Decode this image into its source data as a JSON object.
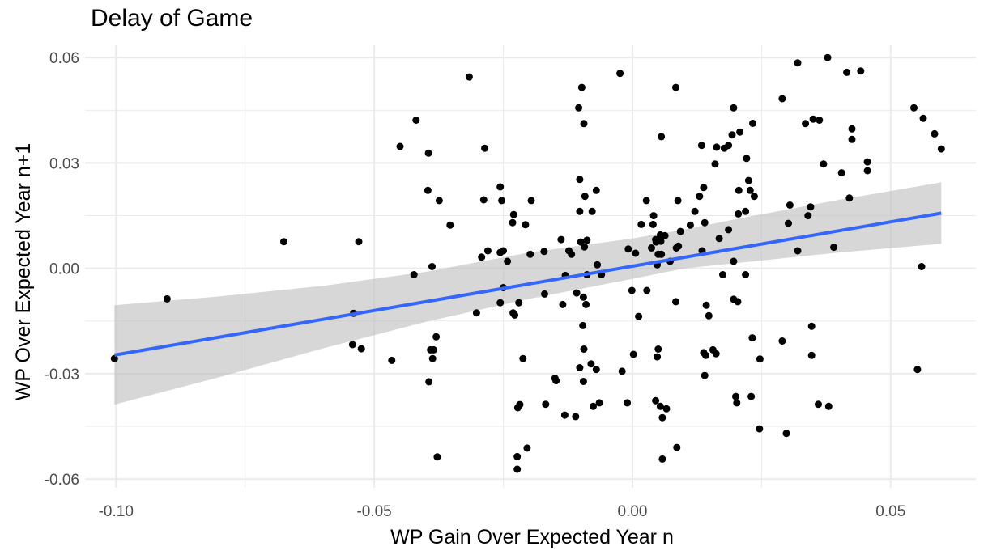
{
  "chart_data": {
    "type": "scatter",
    "title": "Delay of Game",
    "xlabel": "WP Gain Over Expected Year n",
    "ylabel": "WP Over Expected Year n+1",
    "xlim": [
      -0.106,
      0.0665
    ],
    "ylim": [
      -0.0625,
      0.0635
    ],
    "x_ticks": [
      -0.1,
      -0.05,
      0.0,
      0.05
    ],
    "x_tick_labels": [
      "-0.10",
      "-0.05",
      "0.00",
      "0.05"
    ],
    "y_ticks": [
      -0.06,
      -0.03,
      0.0,
      0.03,
      0.06
    ],
    "y_tick_labels": [
      "-0.06",
      "-0.03",
      "0.00",
      "0.03",
      "0.06"
    ],
    "grid": true,
    "legend": "none",
    "colors": {
      "points": "#000000",
      "fit_line": "#3366ff",
      "confidence_band": "#bebebe",
      "grid": "#ebebeb"
    },
    "fit_line": {
      "x": [
        -0.1003,
        0.0598
      ],
      "y": [
        -0.0247,
        0.0157
      ]
    },
    "confidence_band": {
      "x": [
        -0.1003,
        -0.08,
        -0.06,
        -0.04,
        -0.02,
        0.0,
        0.01,
        0.02,
        0.04,
        0.0598
      ],
      "lower": [
        -0.0388,
        -0.031,
        -0.0228,
        -0.0152,
        -0.0087,
        -0.003,
        0.0,
        0.0015,
        0.0045,
        0.007
      ],
      "upper": [
        -0.0105,
        -0.008,
        -0.005,
        -0.001,
        0.0045,
        0.0085,
        0.011,
        0.014,
        0.0195,
        0.0245
      ]
    },
    "points": [
      {
        "x": -0.1003,
        "y": -0.0257
      },
      {
        "x": -0.0901,
        "y": -0.0087
      },
      {
        "x": -0.0675,
        "y": 0.0076
      },
      {
        "x": -0.053,
        "y": 0.0076
      },
      {
        "x": -0.054,
        "y": -0.0128
      },
      {
        "x": -0.0542,
        "y": -0.0217
      },
      {
        "x": -0.0525,
        "y": -0.0229
      },
      {
        "x": -0.0466,
        "y": -0.0262
      },
      {
        "x": -0.045,
        "y": 0.0347
      },
      {
        "x": -0.0419,
        "y": 0.0422
      },
      {
        "x": -0.0423,
        "y": -0.0018
      },
      {
        "x": -0.0395,
        "y": 0.0328
      },
      {
        "x": -0.0396,
        "y": 0.0222
      },
      {
        "x": -0.0374,
        "y": 0.0193
      },
      {
        "x": -0.0388,
        "y": 0.0005
      },
      {
        "x": -0.038,
        "y": -0.0195
      },
      {
        "x": -0.0385,
        "y": -0.0232
      },
      {
        "x": -0.0391,
        "y": -0.0232
      },
      {
        "x": -0.0387,
        "y": -0.0257
      },
      {
        "x": -0.0394,
        "y": -0.0323
      },
      {
        "x": -0.0378,
        "y": -0.0537
      },
      {
        "x": -0.0353,
        "y": 0.0123
      },
      {
        "x": -0.0316,
        "y": 0.0545
      },
      {
        "x": -0.0302,
        "y": -0.0127
      },
      {
        "x": -0.0286,
        "y": 0.0342
      },
      {
        "x": -0.0288,
        "y": 0.0195
      },
      {
        "x": -0.0292,
        "y": 0.0032
      },
      {
        "x": -0.028,
        "y": 0.005
      },
      {
        "x": -0.0256,
        "y": 0.0232
      },
      {
        "x": -0.0253,
        "y": 0.0193
      },
      {
        "x": -0.0256,
        "y": 0.0045
      },
      {
        "x": -0.025,
        "y": 0.005
      },
      {
        "x": -0.0242,
        "y": 0.002
      },
      {
        "x": -0.025,
        "y": -0.0055
      },
      {
        "x": -0.0256,
        "y": -0.0098
      },
      {
        "x": -0.023,
        "y": 0.0153
      },
      {
        "x": -0.0232,
        "y": 0.013
      },
      {
        "x": -0.0231,
        "y": -0.0127
      },
      {
        "x": -0.022,
        "y": -0.0098
      },
      {
        "x": -0.0228,
        "y": -0.0133
      },
      {
        "x": -0.0218,
        "y": -0.0388
      },
      {
        "x": -0.0222,
        "y": -0.0397
      },
      {
        "x": -0.0223,
        "y": -0.0536
      },
      {
        "x": -0.0223,
        "y": -0.0572
      },
      {
        "x": -0.0204,
        "y": -0.0512
      },
      {
        "x": -0.0212,
        "y": -0.0257
      },
      {
        "x": -0.0196,
        "y": 0.0193
      },
      {
        "x": -0.0207,
        "y": 0.0124
      },
      {
        "x": -0.0198,
        "y": 0.004
      },
      {
        "x": -0.017,
        "y": -0.0073
      },
      {
        "x": -0.0171,
        "y": 0.0048
      },
      {
        "x": -0.0168,
        "y": -0.0387
      },
      {
        "x": -0.015,
        "y": -0.0313
      },
      {
        "x": -0.0148,
        "y": -0.032
      },
      {
        "x": -0.0138,
        "y": 0.0082
      },
      {
        "x": -0.0135,
        "y": -0.0103
      },
      {
        "x": -0.013,
        "y": -0.002
      },
      {
        "x": -0.0131,
        "y": -0.0418
      },
      {
        "x": -0.0123,
        "y": 0.005
      },
      {
        "x": -0.0118,
        "y": 0.004
      },
      {
        "x": -0.011,
        "y": -0.0422
      },
      {
        "x": -0.0104,
        "y": 0.0457
      },
      {
        "x": -0.0102,
        "y": 0.0253
      },
      {
        "x": -0.0102,
        "y": 0.0162
      },
      {
        "x": -0.01,
        "y": 0.0075
      },
      {
        "x": -0.0108,
        "y": -0.007
      },
      {
        "x": -0.0102,
        "y": -0.0283
      },
      {
        "x": -0.0098,
        "y": 0.0515
      },
      {
        "x": -0.0094,
        "y": 0.0412
      },
      {
        "x": -0.0092,
        "y": 0.0205
      },
      {
        "x": -0.0093,
        "y": 0.0061
      },
      {
        "x": -0.0088,
        "y": 0.008
      },
      {
        "x": -0.0095,
        "y": -0.0082
      },
      {
        "x": -0.009,
        "y": -0.0103
      },
      {
        "x": -0.0096,
        "y": -0.0163
      },
      {
        "x": -0.0094,
        "y": -0.023
      },
      {
        "x": -0.0095,
        "y": -0.0322
      },
      {
        "x": -0.0088,
        "y": -0.0018
      },
      {
        "x": -0.0078,
        "y": 0.0162
      },
      {
        "x": -0.008,
        "y": -0.0272
      },
      {
        "x": -0.0076,
        "y": -0.0393
      },
      {
        "x": -0.007,
        "y": 0.0222
      },
      {
        "x": -0.0068,
        "y": 0.001
      },
      {
        "x": -0.007,
        "y": -0.0288
      },
      {
        "x": -0.0064,
        "y": -0.0383
      },
      {
        "x": -0.006,
        "y": -0.0018
      },
      {
        "x": -0.0024,
        "y": 0.0555
      },
      {
        "x": -0.002,
        "y": -0.0293
      },
      {
        "x": -0.001,
        "y": -0.0383
      },
      {
        "x": -0.0008,
        "y": 0.0055
      },
      {
        "x": 0.0006,
        "y": 0.0043
      },
      {
        "x": -0.0001,
        "y": -0.0063
      },
      {
        "x": 0.0002,
        "y": -0.0245
      },
      {
        "x": 0.0017,
        "y": 0.0125
      },
      {
        "x": 0.0012,
        "y": -0.0137
      },
      {
        "x": 0.0027,
        "y": 0.0193
      },
      {
        "x": 0.0028,
        "y": -0.0063
      },
      {
        "x": 0.0037,
        "y": 0.0058
      },
      {
        "x": 0.004,
        "y": 0.0125
      },
      {
        "x": 0.0041,
        "y": 0.015
      },
      {
        "x": 0.0045,
        "y": 0.0082
      },
      {
        "x": 0.0046,
        "y": 0.0075
      },
      {
        "x": 0.0048,
        "y": 0.001
      },
      {
        "x": 0.005,
        "y": 0.004
      },
      {
        "x": 0.0054,
        "y": 0.0095
      },
      {
        "x": 0.005,
        "y": -0.023
      },
      {
        "x": 0.0048,
        "y": -0.0252
      },
      {
        "x": 0.0045,
        "y": -0.0377
      },
      {
        "x": 0.0054,
        "y": -0.0393
      },
      {
        "x": 0.0058,
        "y": -0.0425
      },
      {
        "x": 0.0056,
        "y": 0.0375
      },
      {
        "x": 0.0055,
        "y": 0.0077
      },
      {
        "x": 0.0056,
        "y": 0.004
      },
      {
        "x": 0.0063,
        "y": 0.0093
      },
      {
        "x": 0.0066,
        "y": -0.04
      },
      {
        "x": 0.0058,
        "y": -0.0543
      },
      {
        "x": 0.0073,
        "y": 0.002
      },
      {
        "x": 0.0084,
        "y": 0.0515
      },
      {
        "x": 0.0088,
        "y": 0.0193
      },
      {
        "x": 0.0085,
        "y": 0.0058
      },
      {
        "x": 0.0093,
        "y": 0.0105
      },
      {
        "x": 0.0089,
        "y": 0.0063
      },
      {
        "x": 0.0084,
        "y": -0.0095
      },
      {
        "x": 0.0086,
        "y": -0.051
      },
      {
        "x": 0.0112,
        "y": 0.0123
      },
      {
        "x": 0.0121,
        "y": 0.0162
      },
      {
        "x": 0.0134,
        "y": 0.035
      },
      {
        "x": 0.013,
        "y": 0.0205
      },
      {
        "x": 0.0138,
        "y": 0.023
      },
      {
        "x": 0.014,
        "y": 0.013
      },
      {
        "x": 0.0135,
        "y": 0.005
      },
      {
        "x": 0.0143,
        "y": -0.0105
      },
      {
        "x": 0.0138,
        "y": -0.024
      },
      {
        "x": 0.0142,
        "y": -0.0248
      },
      {
        "x": 0.014,
        "y": -0.0305
      },
      {
        "x": 0.0148,
        "y": -0.0135
      },
      {
        "x": 0.016,
        "y": 0.0297
      },
      {
        "x": 0.0163,
        "y": 0.0345
      },
      {
        "x": 0.0156,
        "y": -0.0232
      },
      {
        "x": 0.0162,
        "y": -0.0243
      },
      {
        "x": 0.0168,
        "y": 0.0085
      },
      {
        "x": 0.0178,
        "y": 0.0342
      },
      {
        "x": 0.0175,
        "y": -0.0018
      },
      {
        "x": 0.0186,
        "y": 0.035
      },
      {
        "x": 0.0193,
        "y": 0.038
      },
      {
        "x": 0.0196,
        "y": 0.0457
      },
      {
        "x": 0.0186,
        "y": 0.011
      },
      {
        "x": 0.0196,
        "y": 0.002
      },
      {
        "x": 0.0196,
        "y": -0.0088
      },
      {
        "x": 0.02,
        "y": -0.0365
      },
      {
        "x": 0.0205,
        "y": 0.0155
      },
      {
        "x": 0.0204,
        "y": -0.0095
      },
      {
        "x": 0.0202,
        "y": -0.0383
      },
      {
        "x": 0.0208,
        "y": 0.0388
      },
      {
        "x": 0.0206,
        "y": 0.0222
      },
      {
        "x": 0.0219,
        "y": 0.0162
      },
      {
        "x": 0.0221,
        "y": 0.0313
      },
      {
        "x": 0.0225,
        "y": 0.025
      },
      {
        "x": 0.0228,
        "y": 0.0222
      },
      {
        "x": 0.0219,
        "y": -0.0018
      },
      {
        "x": 0.023,
        "y": -0.0365
      },
      {
        "x": 0.0233,
        "y": 0.0413
      },
      {
        "x": 0.0236,
        "y": 0.0205
      },
      {
        "x": 0.0232,
        "y": -0.0198
      },
      {
        "x": 0.0247,
        "y": -0.0258
      },
      {
        "x": 0.0246,
        "y": -0.0457
      },
      {
        "x": 0.029,
        "y": 0.0483
      },
      {
        "x": 0.029,
        "y": -0.0207
      },
      {
        "x": 0.0298,
        "y": -0.047
      },
      {
        "x": 0.0302,
        "y": 0.0128
      },
      {
        "x": 0.0305,
        "y": 0.018
      },
      {
        "x": 0.032,
        "y": 0.0585
      },
      {
        "x": 0.032,
        "y": 0.005
      },
      {
        "x": 0.0335,
        "y": 0.0412
      },
      {
        "x": 0.034,
        "y": 0.015
      },
      {
        "x": 0.0345,
        "y": 0.0175
      },
      {
        "x": 0.035,
        "y": 0.0425
      },
      {
        "x": 0.0347,
        "y": -0.0165
      },
      {
        "x": 0.0347,
        "y": -0.0248
      },
      {
        "x": 0.0362,
        "y": 0.0422
      },
      {
        "x": 0.036,
        "y": -0.0387
      },
      {
        "x": 0.0378,
        "y": 0.06
      },
      {
        "x": 0.037,
        "y": 0.0297
      },
      {
        "x": 0.038,
        "y": -0.0393
      },
      {
        "x": 0.039,
        "y": 0.006
      },
      {
        "x": 0.0405,
        "y": 0.0272
      },
      {
        "x": 0.0415,
        "y": 0.0558
      },
      {
        "x": 0.042,
        "y": 0.02
      },
      {
        "x": 0.0425,
        "y": 0.0397
      },
      {
        "x": 0.0425,
        "y": 0.0367
      },
      {
        "x": 0.0442,
        "y": 0.0562
      },
      {
        "x": 0.0455,
        "y": 0.0303
      },
      {
        "x": 0.0455,
        "y": 0.0278
      },
      {
        "x": 0.0545,
        "y": 0.0457
      },
      {
        "x": 0.0552,
        "y": -0.0288
      },
      {
        "x": 0.056,
        "y": 0.0005
      },
      {
        "x": 0.0563,
        "y": 0.0427
      },
      {
        "x": 0.0585,
        "y": 0.0383
      },
      {
        "x": 0.0598,
        "y": 0.034
      }
    ]
  }
}
